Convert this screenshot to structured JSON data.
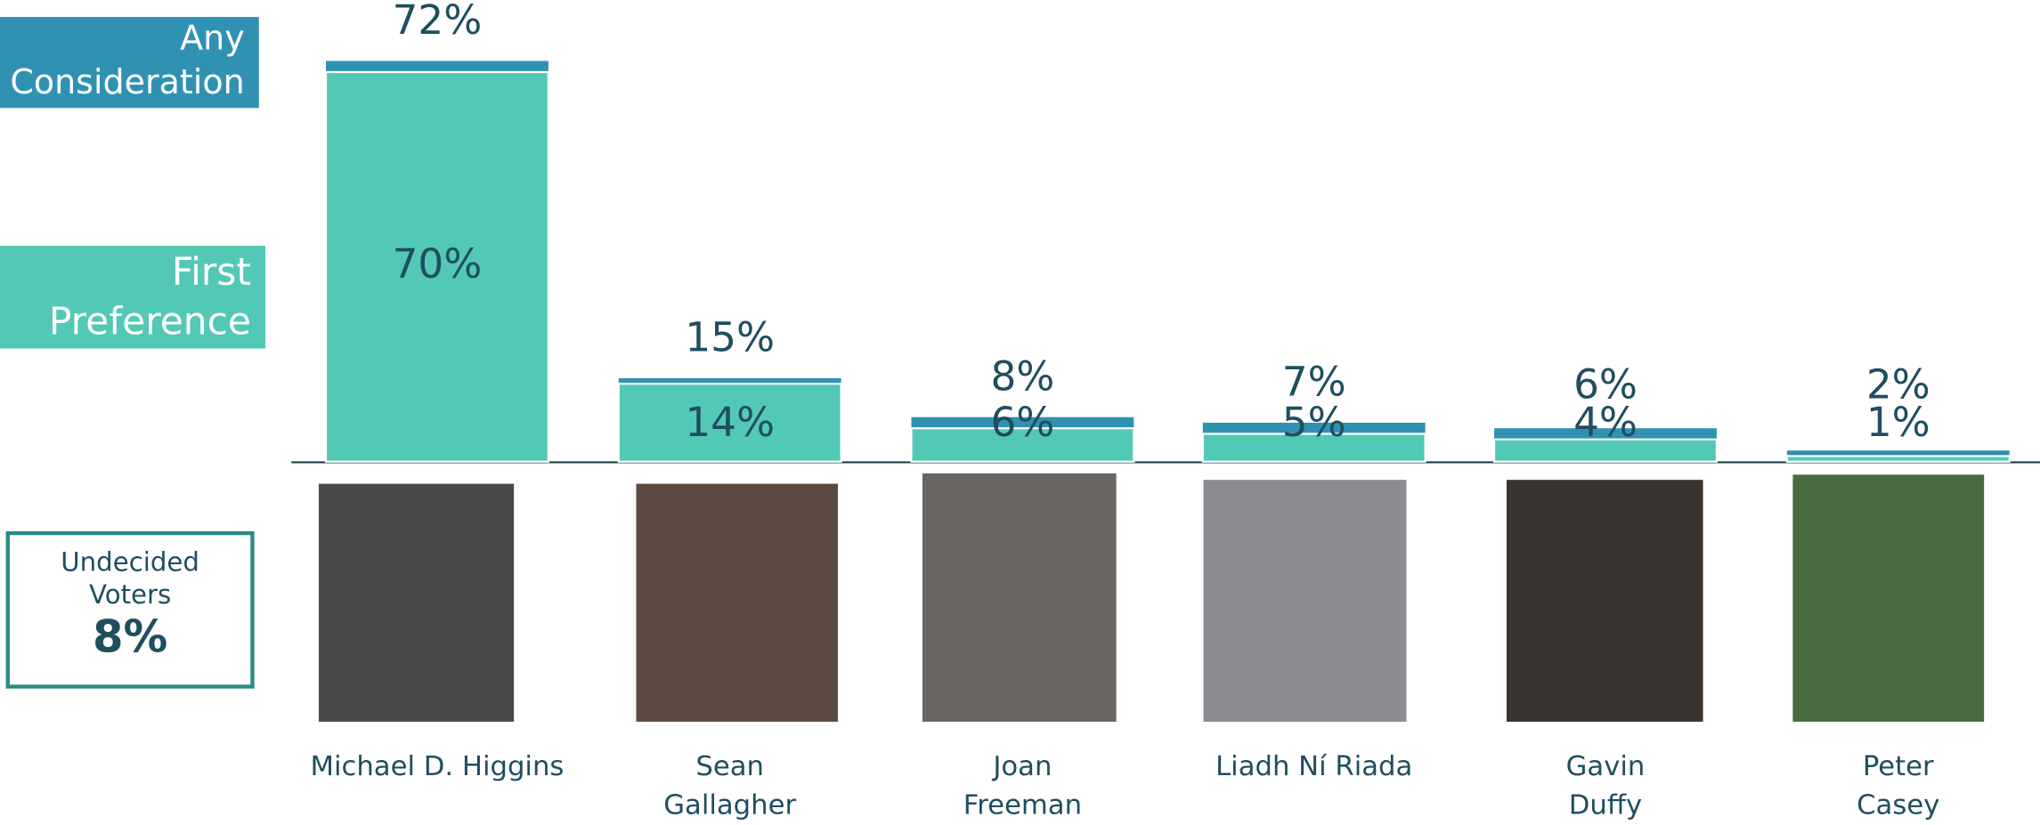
{
  "chart_data": {
    "type": "bar",
    "categories": [
      "Michael D. Higgins",
      "Sean Gallagher",
      "Joan Freeman",
      "Liadh Ní Riada",
      "Gavin Duffy",
      "Peter Casey"
    ],
    "series": [
      {
        "name": "Any Consideration",
        "color": "#2f92b3",
        "values": [
          72,
          15,
          8,
          7,
          6,
          2
        ],
        "value_labels": [
          "72%",
          "15%",
          "8%",
          "7%",
          "6%",
          "2%"
        ]
      },
      {
        "name": "First Preference",
        "color": "#52c9b4",
        "values": [
          70,
          14,
          6,
          5,
          4,
          1
        ],
        "value_labels": [
          "70%",
          "14%",
          "6%",
          "5%",
          "4%",
          "1%"
        ]
      }
    ],
    "annotation": {
      "label": "Undecided Voters",
      "value": 8,
      "value_label": "8%"
    }
  }
}
